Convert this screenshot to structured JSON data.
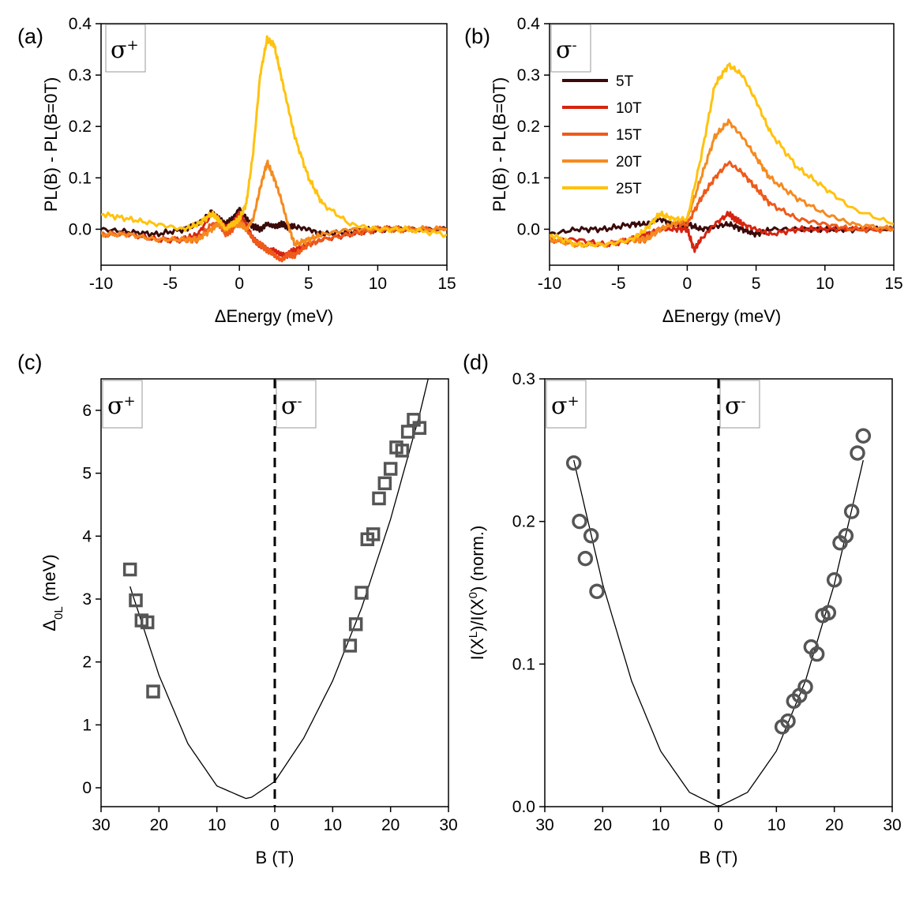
{
  "chart_data": [
    {
      "panel": "(a)",
      "type": "line",
      "polarization": "σ+",
      "xlabel": "ΔEnergy (meV)",
      "ylabel": "PL(B) - PL(B=0T)",
      "xlim": [
        -10,
        15
      ],
      "ylim": [
        -0.07,
        0.4
      ],
      "xticks": [
        -10,
        -5,
        0,
        5,
        10,
        15
      ],
      "yticks": [
        0.0,
        0.1,
        0.2,
        0.3,
        0.4
      ],
      "series": [
        {
          "color": "#3a0a0a",
          "x": [
            -10,
            -8,
            -6,
            -4,
            -3,
            -2,
            -1.5,
            -1,
            -0.5,
            0,
            0.5,
            1,
            1.5,
            2,
            2.5,
            3,
            3.5,
            4,
            5,
            6,
            8,
            10,
            12,
            15
          ],
          "y": [
            0,
            -0.005,
            -0.01,
            0,
            0.01,
            0.035,
            0.02,
            0.01,
            0.02,
            0.04,
            0.02,
            0.005,
            0,
            0.01,
            0.005,
            0.01,
            0.005,
            0.005,
            0,
            -0.01,
            -0.005,
            0,
            0,
            0
          ]
        },
        {
          "color": "#d62410",
          "x": [
            -10,
            -8,
            -6,
            -4,
            -3,
            -2,
            -1.5,
            -1,
            -0.5,
            0,
            0.5,
            1,
            1.5,
            2,
            2.5,
            3,
            3.5,
            4,
            5,
            6,
            8,
            10,
            12,
            15
          ],
          "y": [
            -0.01,
            -0.01,
            -0.02,
            -0.02,
            -0.01,
            0.03,
            0.02,
            0,
            0.01,
            0.03,
            0.01,
            -0.02,
            -0.03,
            -0.04,
            -0.04,
            -0.05,
            -0.05,
            -0.04,
            -0.03,
            -0.02,
            -0.01,
            0,
            0,
            0
          ]
        },
        {
          "color": "#ef5a1a",
          "x": [
            -10,
            -8,
            -6,
            -4,
            -3,
            -2,
            -1.5,
            -1,
            -0.5,
            0,
            0.5,
            1,
            1.5,
            2,
            2.5,
            3,
            3.5,
            4,
            5,
            6,
            8,
            10,
            12,
            15
          ],
          "y": [
            -0.01,
            -0.01,
            -0.02,
            -0.02,
            -0.02,
            0.01,
            0.01,
            -0.01,
            0,
            0.02,
            0,
            -0.02,
            -0.03,
            -0.04,
            -0.05,
            -0.06,
            -0.05,
            -0.05,
            -0.03,
            -0.02,
            -0.01,
            0,
            0,
            0
          ]
        },
        {
          "color": "#f58a1f",
          "x": [
            -10,
            -8,
            -6,
            -4,
            -3,
            -2,
            -1.5,
            -1,
            -0.5,
            0,
            0.5,
            1,
            1.5,
            2,
            2.5,
            3,
            3.5,
            4,
            5,
            6,
            8,
            10,
            12,
            15
          ],
          "y": [
            -0.01,
            -0.01,
            -0.02,
            -0.02,
            -0.02,
            0,
            0.01,
            0,
            0.01,
            0.01,
            0,
            0.02,
            0.08,
            0.13,
            0.1,
            0.06,
            0.01,
            -0.03,
            -0.02,
            -0.01,
            0,
            0,
            0,
            0
          ]
        },
        {
          "color": "#ffc20e",
          "x": [
            -10,
            -8,
            -6,
            -4,
            -3,
            -2,
            -1.5,
            -1,
            -0.5,
            0,
            0.5,
            1,
            1.5,
            2,
            2.5,
            3,
            3.5,
            4,
            5,
            6,
            8,
            10,
            12,
            15
          ],
          "y": [
            0.03,
            0.02,
            0.01,
            0,
            0.01,
            0.03,
            0.02,
            0,
            0.01,
            0.02,
            0.05,
            0.15,
            0.3,
            0.37,
            0.36,
            0.3,
            0.24,
            0.18,
            0.1,
            0.05,
            0.01,
            0,
            0,
            -0.01
          ]
        }
      ]
    },
    {
      "panel": "(b)",
      "type": "line",
      "polarization": "σ-",
      "xlabel": "ΔEnergy (meV)",
      "ylabel": "PL(B) - PL(B=0T)",
      "xlim": [
        -10,
        15
      ],
      "ylim": [
        -0.07,
        0.4
      ],
      "xticks": [
        -10,
        -5,
        0,
        5,
        10,
        15
      ],
      "yticks": [
        0.0,
        0.1,
        0.2,
        0.3,
        0.4
      ],
      "legend": {
        "position": "upper-left",
        "entries": [
          "5T",
          "10T",
          "15T",
          "20T",
          "25T"
        ]
      },
      "series": [
        {
          "name": "5T",
          "color": "#3a0a0a",
          "x": [
            -10,
            -8,
            -6,
            -4,
            -3,
            -2,
            -1,
            0,
            1,
            2,
            3,
            4,
            5,
            6,
            8,
            10,
            12,
            15
          ],
          "y": [
            -0.01,
            0,
            0,
            0.01,
            0.01,
            0.02,
            0.01,
            0.01,
            0,
            0.005,
            0.01,
            0,
            -0.01,
            0,
            0,
            0,
            0,
            0
          ]
        },
        {
          "name": "10T",
          "color": "#d62410",
          "x": [
            -10,
            -8,
            -6,
            -4,
            -3,
            -2,
            -1,
            0,
            0.5,
            1,
            2,
            3,
            3.5,
            4,
            5,
            6,
            8,
            10,
            12,
            15
          ],
          "y": [
            -0.02,
            -0.02,
            -0.03,
            -0.02,
            -0.01,
            0,
            0,
            0,
            -0.04,
            -0.02,
            0.01,
            0.03,
            0.02,
            0.01,
            0,
            -0.01,
            0,
            0,
            0,
            0
          ]
        },
        {
          "name": "15T",
          "color": "#ef5a1a",
          "x": [
            -10,
            -8,
            -6,
            -4,
            -3,
            -2,
            -1,
            0,
            1,
            2,
            3,
            4,
            5,
            6,
            8,
            10,
            12,
            15
          ],
          "y": [
            -0.02,
            -0.03,
            -0.03,
            -0.02,
            -0.02,
            0,
            0.01,
            0.01,
            0.06,
            0.1,
            0.13,
            0.11,
            0.08,
            0.05,
            0.02,
            0.01,
            0,
            0
          ]
        },
        {
          "name": "20T",
          "color": "#f58a1f",
          "x": [
            -10,
            -8,
            -6,
            -4,
            -3,
            -2,
            -1,
            0,
            1,
            2,
            3,
            4,
            5,
            6,
            8,
            10,
            12,
            15
          ],
          "y": [
            -0.02,
            -0.03,
            -0.03,
            -0.02,
            -0.02,
            0,
            0.01,
            0.02,
            0.1,
            0.18,
            0.21,
            0.18,
            0.14,
            0.1,
            0.06,
            0.03,
            0.01,
            0
          ]
        },
        {
          "name": "25T",
          "color": "#ffc20e",
          "x": [
            -10,
            -8,
            -6,
            -4,
            -3,
            -2,
            -1,
            0,
            1,
            2,
            3,
            4,
            5,
            6,
            8,
            10,
            12,
            15
          ],
          "y": [
            -0.01,
            -0.03,
            -0.03,
            -0.02,
            0,
            0.03,
            0.02,
            0.02,
            0.14,
            0.28,
            0.32,
            0.3,
            0.25,
            0.19,
            0.12,
            0.08,
            0.04,
            0.01
          ]
        }
      ]
    },
    {
      "panel": "(c)",
      "type": "scatter",
      "xlabel": "B (T)",
      "ylabel": "Δ0L (meV)",
      "xlim": [
        -30,
        30
      ],
      "ylim": [
        -0.3,
        6.5
      ],
      "xticks": [
        -30,
        -20,
        -10,
        0,
        10,
        20,
        30
      ],
      "xticklabels": [
        "30",
        "20",
        "10",
        "0",
        "10",
        "20",
        "30"
      ],
      "yticks": [
        0,
        1,
        2,
        3,
        4,
        5,
        6
      ],
      "regions": [
        "σ+",
        "σ-"
      ],
      "marker": "square",
      "points_x": [
        -25,
        -24,
        -23,
        -22,
        -21,
        13,
        14,
        15,
        16,
        17,
        18,
        19,
        20,
        21,
        22,
        23,
        24,
        25
      ],
      "points_y": [
        3.47,
        2.98,
        2.66,
        2.63,
        1.53,
        2.26,
        2.6,
        3.1,
        3.95,
        4.03,
        4.6,
        4.84,
        5.07,
        5.41,
        5.36,
        5.66,
        5.85,
        5.72
      ],
      "fit": {
        "x": [
          -25,
          -20,
          -15,
          -10,
          -5,
          -4,
          0,
          5,
          10,
          15,
          20,
          25,
          26.5
        ],
        "y": [
          3.2,
          1.79,
          0.7,
          0.03,
          -0.17,
          -0.15,
          0.1,
          0.79,
          1.7,
          2.86,
          4.27,
          5.93,
          6.5
        ]
      }
    },
    {
      "panel": "(d)",
      "type": "scatter",
      "xlabel": "B (T)",
      "ylabel": "I(X^L)/I(X^0) (norm.)",
      "xlim": [
        -30,
        30
      ],
      "ylim": [
        0,
        0.3
      ],
      "xticks": [
        -30,
        -20,
        -10,
        0,
        10,
        20,
        30
      ],
      "xticklabels": [
        "30",
        "20",
        "10",
        "0",
        "10",
        "20",
        "30"
      ],
      "yticks": [
        0.0,
        0.1,
        0.2,
        0.3
      ],
      "regions": [
        "σ+",
        "σ-"
      ],
      "marker": "circle",
      "points_x": [
        -25,
        -24,
        -23,
        -22,
        -21,
        11,
        12,
        13,
        14,
        15,
        16,
        17,
        18,
        19,
        20,
        21,
        22,
        23,
        24,
        25
      ],
      "points_y": [
        0.241,
        0.2,
        0.174,
        0.19,
        0.151,
        0.056,
        0.06,
        0.074,
        0.078,
        0.084,
        0.112,
        0.107,
        0.134,
        0.136,
        0.159,
        0.185,
        0.19,
        0.207,
        0.248,
        0.26
      ],
      "fit": {
        "x": [
          -25,
          -20,
          -15,
          -10,
          -5,
          0,
          5,
          10,
          15,
          20,
          25
        ],
        "y": [
          0.243,
          0.156,
          0.088,
          0.039,
          0.01,
          0,
          0.01,
          0.039,
          0.088,
          0.156,
          0.243
        ]
      }
    }
  ]
}
